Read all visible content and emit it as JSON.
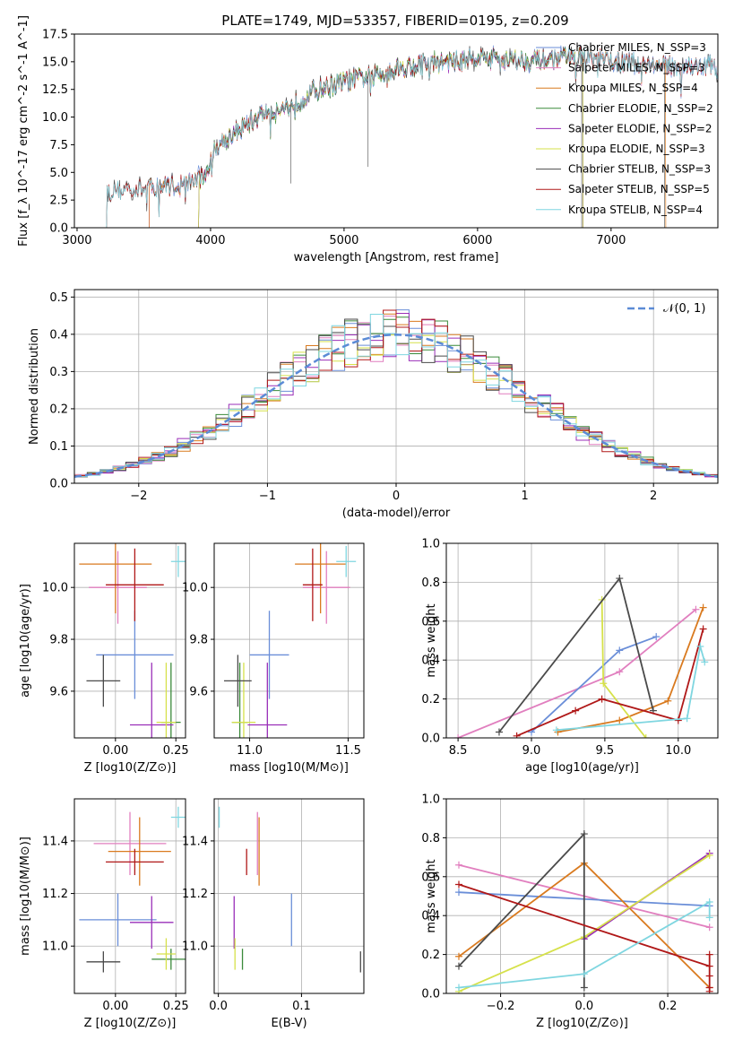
{
  "figure": {
    "title": "PLATE=1749, MJD=53357, FIBERID=0195, z=0.209"
  },
  "colors": {
    "chabrier_miles": "#6a8ed8",
    "salpeter_miles": "#e17fbf",
    "kroupa_miles": "#d97a1f",
    "chabrier_elodie": "#3a8a3a",
    "salpeter_elodie": "#9a2fb8",
    "kroupa_elodie": "#d6e14a",
    "chabrier_stelib": "#4a4a4a",
    "salpeter_stelib": "#b01818",
    "kroupa_stelib": "#7fd6e0",
    "normal": "#5b8bd6"
  },
  "chart_data": [
    {
      "id": "spectrum",
      "type": "line",
      "title": "PLATE=1749, MJD=53357, FIBERID=0195, z=0.209",
      "xlabel": "wavelength [Angstrom, rest frame]",
      "ylabel": "Flux [f_λ 10^-17 erg cm^-2 s^-1 A^-1]",
      "xlim": [
        2980,
        7800
      ],
      "ylim": [
        0,
        17.5
      ],
      "xticks": [
        3000,
        4000,
        5000,
        6000,
        7000
      ],
      "yticks": [
        0.0,
        2.5,
        5.0,
        7.5,
        10.0,
        12.5,
        15.0,
        17.5
      ],
      "legend_position": "top-right",
      "series": [
        {
          "name": "Chabrier MILES, N_SSP=3",
          "color_key": "chabrier_miles"
        },
        {
          "name": "Salpeter MILES, N_SSP=3",
          "color_key": "salpeter_miles"
        },
        {
          "name": "Kroupa MILES, N_SSP=4",
          "color_key": "kroupa_miles"
        },
        {
          "name": "Chabrier ELODIE, N_SSP=2",
          "color_key": "chabrier_elodie"
        },
        {
          "name": "Salpeter ELODIE, N_SSP=2",
          "color_key": "salpeter_elodie"
        },
        {
          "name": "Kroupa ELODIE, N_SSP=3",
          "color_key": "kroupa_elodie"
        },
        {
          "name": "Chabrier STELIB, N_SSP=3",
          "color_key": "chabrier_stelib"
        },
        {
          "name": "Salpeter STELIB, N_SSP=5",
          "color_key": "salpeter_stelib"
        },
        {
          "name": "Kroupa STELIB, N_SSP=4",
          "color_key": "kroupa_stelib"
        }
      ],
      "continuum": {
        "x": [
          3200,
          3250,
          3400,
          3600,
          3800,
          3950,
          4050,
          4200,
          4400,
          4600,
          4800,
          5000,
          5200,
          5400,
          5600,
          5800,
          6000,
          6200,
          6400,
          6600,
          6800,
          7000,
          7200,
          7400
        ],
        "y": [
          2.8,
          3.3,
          3.5,
          3.7,
          4.0,
          4.6,
          7.5,
          8.8,
          10.3,
          11.0,
          12.5,
          13.2,
          13.7,
          14.4,
          14.8,
          15.0,
          15.4,
          15.3,
          15.1,
          15.3,
          15.4,
          15.0,
          14.9,
          14.6
        ]
      },
      "model_start_wavelength": {
        "chabrier_miles": 3540,
        "salpeter_miles": 3540,
        "kroupa_miles": 3540,
        "chabrier_elodie": 3910,
        "salpeter_elodie": 3910,
        "kroupa_elodie": 3910,
        "chabrier_stelib": 3220,
        "salpeter_stelib": 3220,
        "kroupa_stelib": 3220
      },
      "model_end_wavelength": {
        "chabrier_miles": 7800,
        "salpeter_miles": 7800,
        "kroupa_miles": 7410,
        "chabrier_elodie": 6790,
        "salpeter_elodie": 6790,
        "kroupa_elodie": 6790,
        "chabrier_stelib": 7800,
        "salpeter_stelib": 7800,
        "kroupa_stelib": 7800
      }
    },
    {
      "id": "residuals",
      "type": "line",
      "xlabel": "(data-model)/error",
      "ylabel": "Normed distribution",
      "xlim": [
        -2.5,
        2.5
      ],
      "ylim": [
        0,
        0.52
      ],
      "xticks": [
        -2,
        -1,
        0,
        1,
        2
      ],
      "xtick_labels": [
        "−2",
        "−1",
        "0",
        "1",
        "2"
      ],
      "yticks": [
        0.0,
        0.1,
        0.2,
        0.3,
        0.4,
        0.5
      ],
      "grid": true,
      "legend_position": "top-right",
      "legend_label": "𝒩(0, 1)",
      "bin_width": 0.1
    },
    {
      "id": "age_vs_Z",
      "type": "scatter",
      "xlabel": "Z [log10(Z/Z⊙)]",
      "ylabel": "age [log10(age/yr)]",
      "xlim": [
        -0.17,
        0.29
      ],
      "ylim": [
        9.42,
        10.17
      ],
      "xticks": [
        0.0,
        0.25
      ],
      "yticks": [
        9.6,
        9.8,
        10.0
      ],
      "grid": true,
      "points": [
        {
          "key": "chabrier_miles",
          "x": 0.08,
          "xerr": 0.16,
          "y": 9.74,
          "yerr": 0.17
        },
        {
          "key": "salpeter_miles",
          "x": 0.01,
          "xerr": 0.12,
          "y": 10.0,
          "yerr": 0.14
        },
        {
          "key": "kroupa_miles",
          "x": 0.0,
          "xerr": 0.15,
          "y": 10.09,
          "yerr": 0.19
        },
        {
          "key": "chabrier_elodie",
          "x": 0.23,
          "xerr": 0.04,
          "y": 9.48,
          "yerr": 0.23
        },
        {
          "key": "salpeter_elodie",
          "x": 0.15,
          "xerr": 0.09,
          "y": 9.47,
          "yerr": 0.24
        },
        {
          "key": "kroupa_elodie",
          "x": 0.21,
          "xerr": 0.04,
          "y": 9.48,
          "yerr": 0.23
        },
        {
          "key": "chabrier_stelib",
          "x": -0.05,
          "xerr": 0.07,
          "y": 9.64,
          "yerr": 0.1
        },
        {
          "key": "salpeter_stelib",
          "x": 0.08,
          "xerr": 0.12,
          "y": 10.01,
          "yerr": 0.14
        },
        {
          "key": "kroupa_stelib",
          "x": 0.26,
          "xerr": 0.03,
          "y": 10.1,
          "yerr": 0.06
        }
      ]
    },
    {
      "id": "age_vs_mass",
      "type": "scatter",
      "xlabel": "mass [log10(M/M⊙)]",
      "xlim": [
        10.82,
        11.58
      ],
      "ylim": [
        9.42,
        10.17
      ],
      "xticks": [
        11.0,
        11.5
      ],
      "yticks": [
        9.6,
        9.8,
        10.0
      ],
      "grid": true,
      "points": [
        {
          "key": "chabrier_miles",
          "x": 11.1,
          "xerr": 0.1,
          "y": 9.74,
          "yerr": 0.17
        },
        {
          "key": "salpeter_miles",
          "x": 11.39,
          "xerr": 0.12,
          "y": 10.0,
          "yerr": 0.14
        },
        {
          "key": "kroupa_miles",
          "x": 11.36,
          "xerr": 0.13,
          "y": 10.09,
          "yerr": 0.19
        },
        {
          "key": "chabrier_elodie",
          "x": 10.95,
          "xerr": 0.04,
          "y": 9.48,
          "yerr": 0.23
        },
        {
          "key": "salpeter_elodie",
          "x": 11.09,
          "xerr": 0.1,
          "y": 9.47,
          "yerr": 0.24
        },
        {
          "key": "kroupa_elodie",
          "x": 10.97,
          "xerr": 0.06,
          "y": 9.48,
          "yerr": 0.23
        },
        {
          "key": "chabrier_stelib",
          "x": 10.94,
          "xerr": 0.07,
          "y": 9.64,
          "yerr": 0.1
        },
        {
          "key": "salpeter_stelib",
          "x": 11.32,
          "xerr": 0.05,
          "y": 10.01,
          "yerr": 0.14
        },
        {
          "key": "kroupa_stelib",
          "x": 11.49,
          "xerr": 0.05,
          "y": 10.1,
          "yerr": 0.06
        }
      ]
    },
    {
      "id": "weight_vs_age",
      "type": "line",
      "xlabel": "age [log10(age/yr)]",
      "ylabel": "mass weight",
      "xlim": [
        8.42,
        10.27
      ],
      "ylim": [
        0,
        1
      ],
      "xticks": [
        8.5,
        9.0,
        9.5,
        10.0
      ],
      "yticks": [
        0.0,
        0.2,
        0.4,
        0.6,
        0.8,
        1.0
      ],
      "grid": true,
      "series": [
        {
          "key": "salpeter_miles",
          "x": [
            8.5,
            9.6,
            10.12
          ],
          "y": [
            0.0,
            0.34,
            0.66
          ]
        },
        {
          "key": "chabrier_miles",
          "x": [
            9.0,
            9.6,
            9.85
          ],
          "y": [
            0.03,
            0.45,
            0.52
          ]
        },
        {
          "key": "kroupa_miles",
          "x": [
            9.18,
            9.6,
            9.93,
            10.17
          ],
          "y": [
            0.03,
            0.09,
            0.19,
            0.67
          ]
        },
        {
          "key": "kroupa_elodie",
          "x": [
            9.48,
            9.49,
            9.78
          ],
          "y": [
            0.71,
            0.28,
            0.0
          ]
        },
        {
          "key": "chabrier_stelib",
          "x": [
            8.78,
            9.6,
            9.83
          ],
          "y": [
            0.03,
            0.82,
            0.14
          ]
        },
        {
          "key": "salpeter_stelib",
          "x": [
            8.9,
            9.3,
            9.48,
            10.0,
            10.17
          ],
          "y": [
            0.01,
            0.14,
            0.2,
            0.09,
            0.56
          ]
        },
        {
          "key": "kroupa_stelib",
          "x": [
            9.17,
            10.06,
            10.15,
            10.18
          ],
          "y": [
            0.04,
            0.1,
            0.47,
            0.39
          ]
        }
      ]
    },
    {
      "id": "mass_vs_Z",
      "type": "scatter",
      "xlabel": "Z [log10(Z/Z⊙)]",
      "ylabel": "mass [log10(M/M⊙)]",
      "xlim": [
        -0.17,
        0.29
      ],
      "ylim": [
        10.82,
        11.56
      ],
      "xticks": [
        0.0,
        0.25
      ],
      "yticks": [
        11.0,
        11.2,
        11.4
      ],
      "grid": true,
      "points": [
        {
          "key": "chabrier_miles",
          "x": 0.01,
          "xerr": 0.16,
          "y": 11.1,
          "yerr": 0.1
        },
        {
          "key": "salpeter_miles",
          "x": 0.06,
          "xerr": 0.15,
          "y": 11.39,
          "yerr": 0.12
        },
        {
          "key": "kroupa_miles",
          "x": 0.1,
          "xerr": 0.13,
          "y": 11.36,
          "yerr": 0.13
        },
        {
          "key": "chabrier_elodie",
          "x": 0.23,
          "xerr": 0.08,
          "y": 10.95,
          "yerr": 0.04
        },
        {
          "key": "salpeter_elodie",
          "x": 0.15,
          "xerr": 0.09,
          "y": 11.09,
          "yerr": 0.1
        },
        {
          "key": "kroupa_elodie",
          "x": 0.21,
          "xerr": 0.04,
          "y": 10.97,
          "yerr": 0.06
        },
        {
          "key": "chabrier_stelib",
          "x": -0.05,
          "xerr": 0.07,
          "y": 10.94,
          "yerr": 0.04
        },
        {
          "key": "salpeter_stelib",
          "x": 0.08,
          "xerr": 0.12,
          "y": 11.32,
          "yerr": 0.05
        },
        {
          "key": "kroupa_stelib",
          "x": 0.26,
          "xerr": 0.03,
          "y": 11.49,
          "yerr": 0.04
        }
      ]
    },
    {
      "id": "mass_vs_ebv",
      "type": "scatter",
      "xlabel": "E(B-V)",
      "xlim": [
        -0.005,
        0.175
      ],
      "ylim": [
        10.82,
        11.56
      ],
      "xticks": [
        0.0,
        0.1
      ],
      "yticks": [
        11.0,
        11.2,
        11.4
      ],
      "grid": true,
      "points": [
        {
          "key": "chabrier_miles",
          "x": 0.088,
          "y": 11.1,
          "yerr": 0.1
        },
        {
          "key": "salpeter_miles",
          "x": 0.047,
          "y": 11.39,
          "yerr": 0.12
        },
        {
          "key": "kroupa_miles",
          "x": 0.049,
          "y": 11.36,
          "yerr": 0.13
        },
        {
          "key": "chabrier_elodie",
          "x": 0.029,
          "y": 10.95,
          "yerr": 0.04
        },
        {
          "key": "salpeter_elodie",
          "x": 0.019,
          "y": 11.09,
          "yerr": 0.1
        },
        {
          "key": "kroupa_elodie",
          "x": 0.02,
          "y": 10.97,
          "yerr": 0.06
        },
        {
          "key": "chabrier_stelib",
          "x": 0.171,
          "y": 10.94,
          "yerr": 0.04
        },
        {
          "key": "salpeter_stelib",
          "x": 0.034,
          "y": 11.32,
          "yerr": 0.05
        },
        {
          "key": "kroupa_stelib",
          "x": 0.001,
          "y": 11.49,
          "yerr": 0.04
        }
      ]
    },
    {
      "id": "weight_vs_Z",
      "type": "line",
      "xlabel": "Z [log10(Z/Z⊙)]",
      "ylabel": "mass weight",
      "xlim": [
        -0.33,
        0.32
      ],
      "ylim": [
        0,
        1
      ],
      "xticks": [
        -0.2,
        0.0,
        0.2
      ],
      "xtick_labels": [
        "−0.2",
        "0.0",
        "0.2"
      ],
      "yticks": [
        0.0,
        0.2,
        0.4,
        0.6,
        0.8,
        1.0
      ],
      "grid": true,
      "series": [
        {
          "key": "salpeter_miles",
          "x": [
            -0.3,
            0.3
          ],
          "y": [
            0.66,
            0.34
          ]
        },
        {
          "key": "chabrier_miles",
          "x": [
            -0.3,
            0.3
          ],
          "y": [
            0.52,
            0.45
          ]
        },
        {
          "key": "kroupa_miles",
          "x": [
            -0.3,
            0.0,
            0.3
          ],
          "y": [
            0.19,
            0.67,
            0.03
          ]
        },
        {
          "key": "salpeter_elodie",
          "x": [
            0.0,
            0.3
          ],
          "y": [
            0.28,
            0.72
          ]
        },
        {
          "key": "kroupa_elodie",
          "x": [
            -0.3,
            0.0,
            0.3
          ],
          "y": [
            0.01,
            0.29,
            0.71
          ]
        },
        {
          "key": "chabrier_stelib",
          "x": [
            -0.3,
            0.0,
            0.0
          ],
          "y": [
            0.14,
            0.82,
            0.03
          ]
        },
        {
          "key": "salpeter_stelib",
          "x": [
            -0.3,
            0.3,
            0.3,
            0.3,
            0.3,
            0.3
          ],
          "y": [
            0.56,
            0.14,
            0.2,
            0.09,
            0.01,
            0.03
          ]
        },
        {
          "key": "kroupa_stelib",
          "x": [
            -0.3,
            0.0,
            0.3,
            0.3
          ],
          "y": [
            0.03,
            0.1,
            0.47,
            0.39
          ]
        }
      ]
    }
  ]
}
